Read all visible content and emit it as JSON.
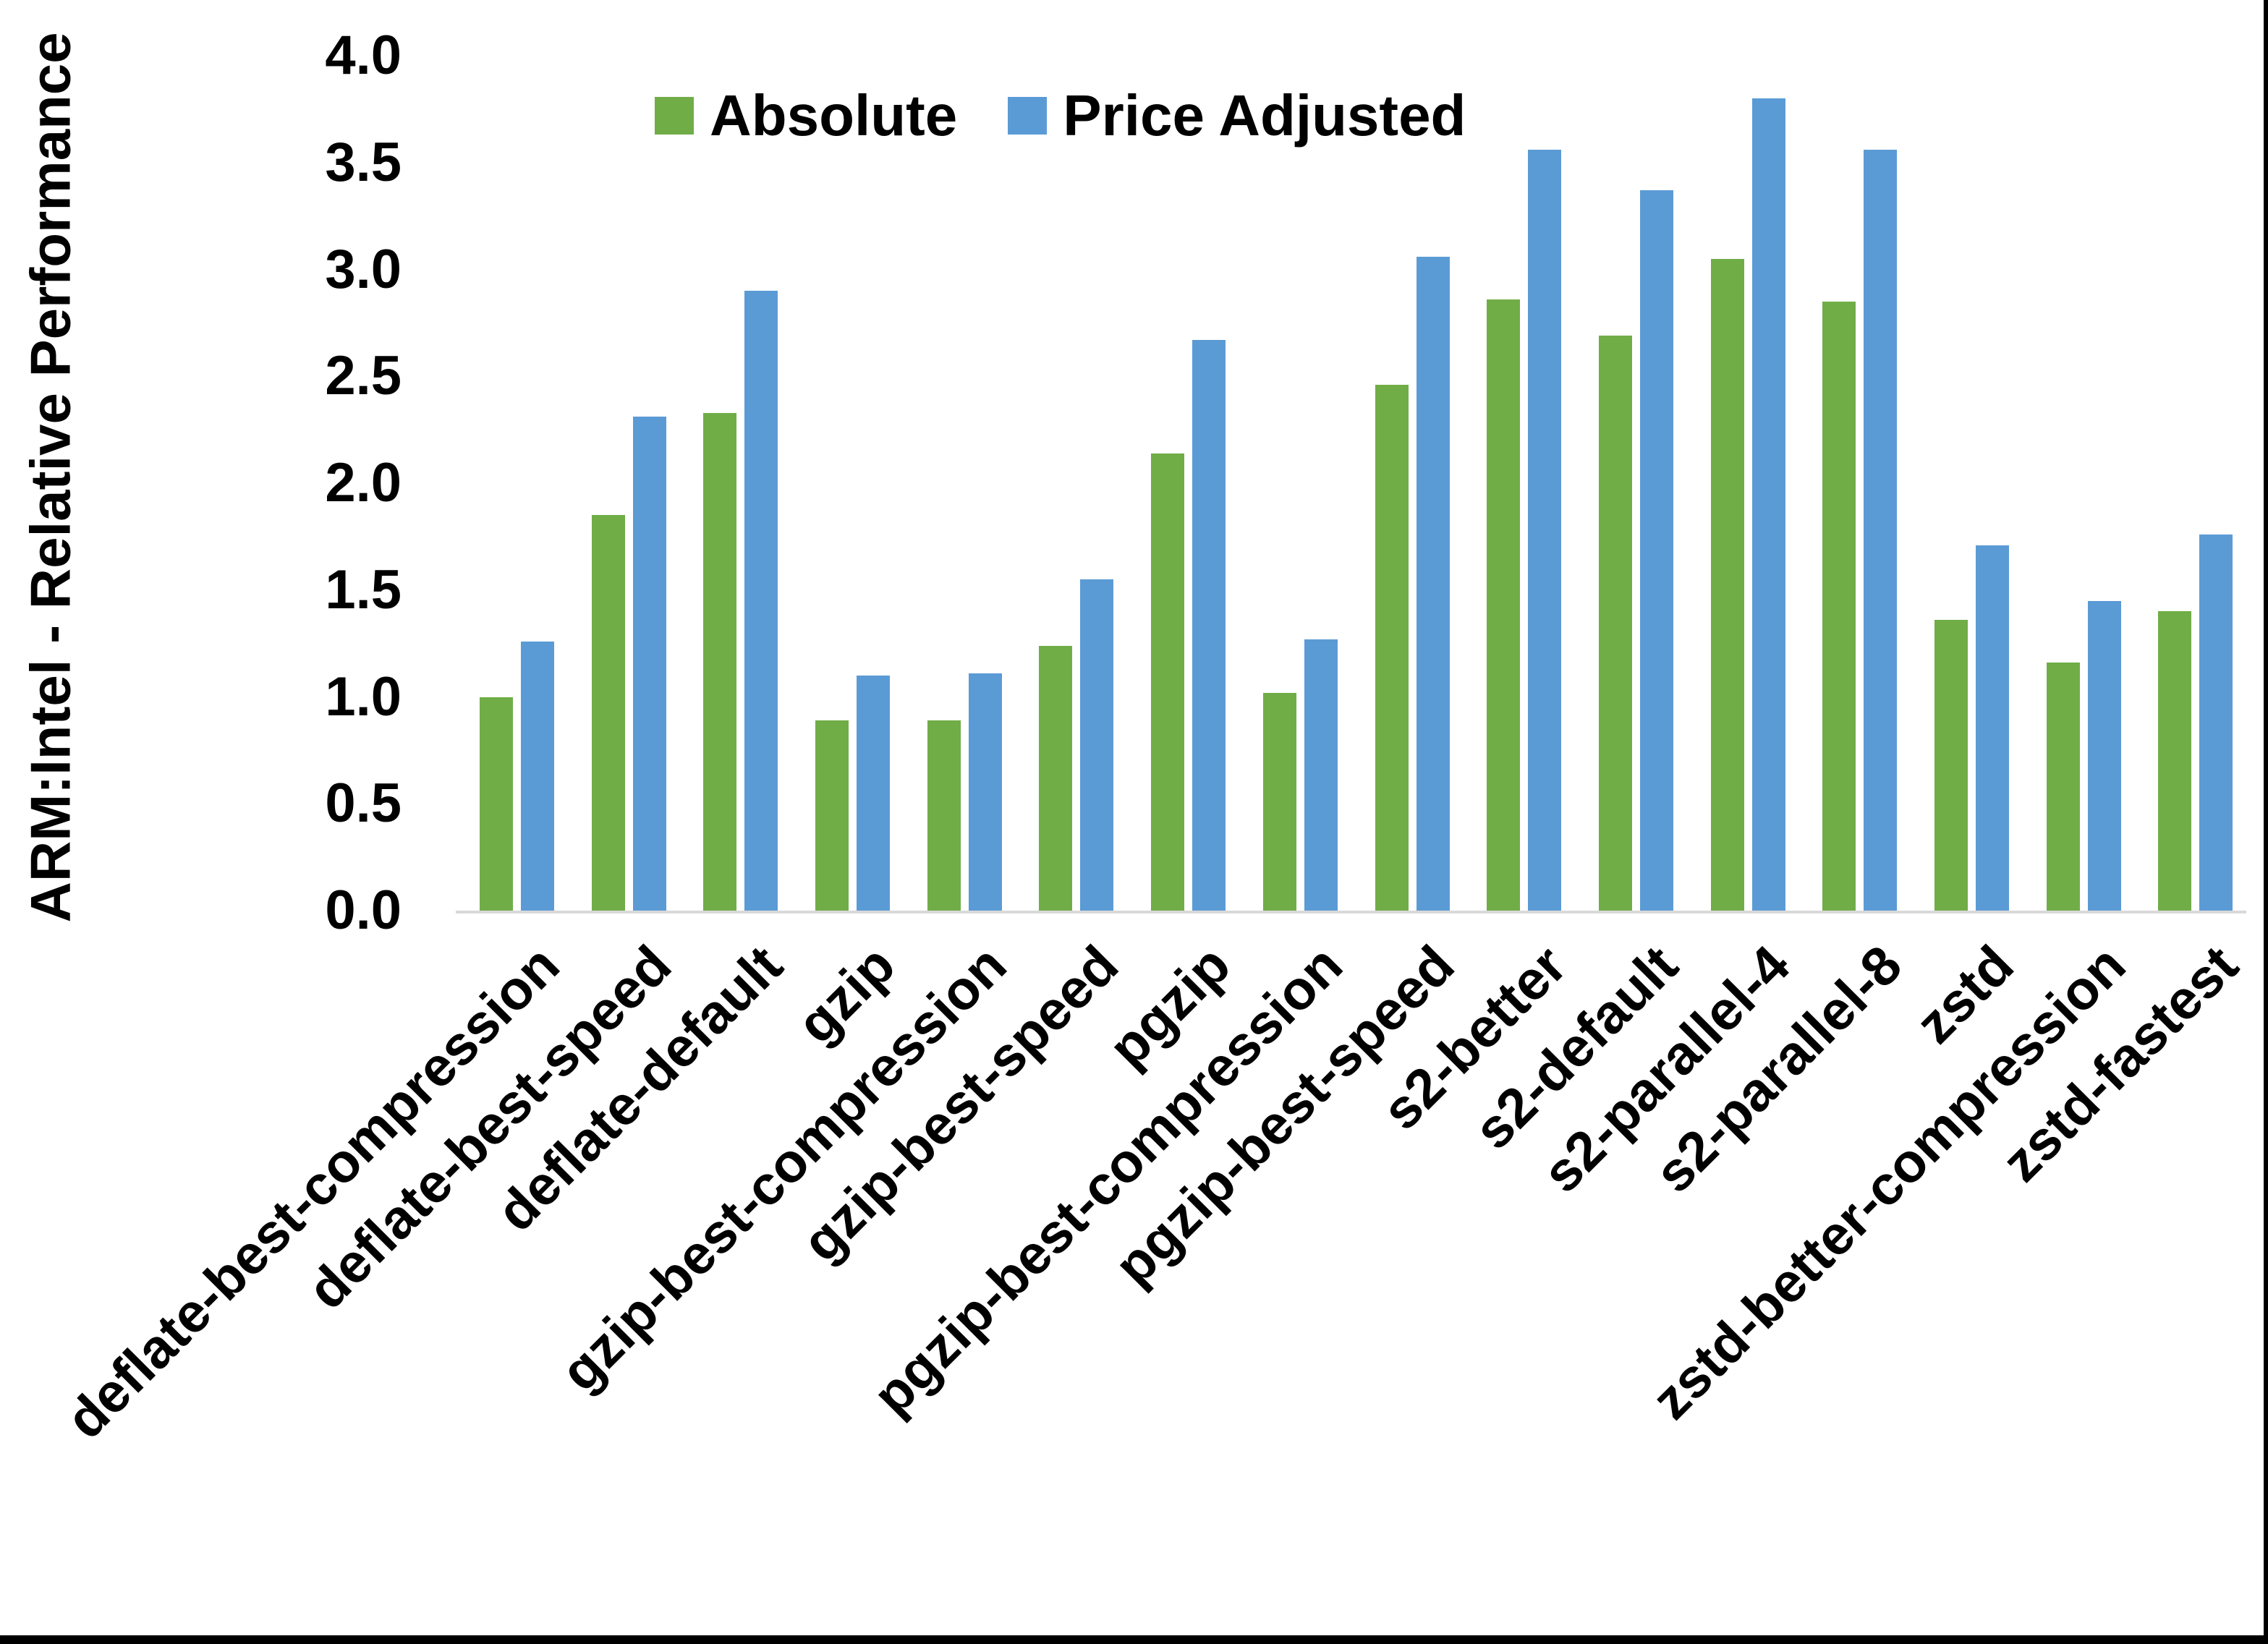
{
  "chart_data": {
    "type": "bar",
    "title": "",
    "xlabel": "",
    "ylabel": "ARM:Intel - Relative Performance",
    "ylim": [
      0.0,
      4.0
    ],
    "ytick_step": 0.5,
    "ytick_decimals": 1,
    "grid": false,
    "legend_position": "top-center",
    "axis_line_color": "#d9d9d9",
    "text_color": "#000000",
    "background_color": "#ffffff",
    "categories": [
      "deflate-best-compression",
      "deflate-best-speed",
      "deflate-default",
      "gzip",
      "gzip-best-compression",
      "gzip-best-speed",
      "pgzip",
      "pgzip-best-compression",
      "pgzip-best-speed",
      "s2-better",
      "s2-default",
      "s2-parallel-4",
      "s2-parallel-8",
      "zstd",
      "zstd-better-compression",
      "zstd-fastest"
    ],
    "series": [
      {
        "name": "Absolute",
        "color": "#70AD47",
        "values": [
          1.0,
          1.85,
          2.33,
          0.89,
          0.89,
          1.24,
          2.14,
          1.02,
          2.46,
          2.86,
          2.69,
          3.05,
          2.85,
          1.36,
          1.16,
          1.4
        ]
      },
      {
        "name": "Price Adjusted",
        "color": "#5B9BD5",
        "values": [
          1.26,
          2.31,
          2.9,
          1.1,
          1.11,
          1.55,
          2.67,
          1.27,
          3.06,
          3.56,
          3.37,
          3.8,
          3.56,
          1.71,
          1.45,
          1.76
        ]
      }
    ]
  },
  "frame": {
    "bottom_bar_color": "#000000",
    "right_border_color": "#000000"
  }
}
